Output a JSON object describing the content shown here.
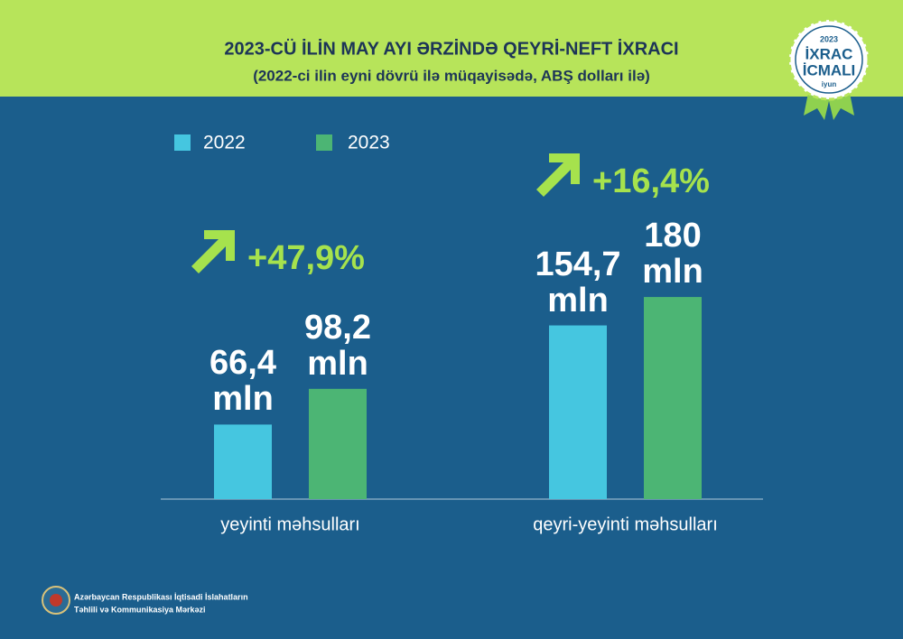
{
  "header": {
    "title": "2023-CÜ İLİN MAY AYI ƏRZİNDƏ QEYRİ-NEFT İXRACI",
    "subtitle": "(2022-ci ilin eyni dövrü ilə müqayisədə, ABŞ dolları ilə)"
  },
  "badge": {
    "year": "2023",
    "line1": "İXRAC",
    "line2": "İCMALI",
    "month": "iyun"
  },
  "chart_data": {
    "type": "bar",
    "categories": [
      "yeyinti məhsulları",
      "qeyri-yeyinti məhsulları"
    ],
    "series": [
      {
        "name": "2022",
        "color": "#45c6e0",
        "values": [
          66.4,
          154.7
        ],
        "value_labels": [
          "66,4 mln",
          "154,7 mln"
        ]
      },
      {
        "name": "2023",
        "color": "#4cb574",
        "values": [
          98.2,
          180
        ],
        "value_labels": [
          "98,2 mln",
          "180 mln"
        ]
      }
    ],
    "annotations": [
      "+47,9%",
      "+16,4%"
    ],
    "annotation_color": "#a6e24d"
  },
  "footer": {
    "lines": [
      "Azərbaycan Respublikası İqtisadi İslahatların",
      "Təhlili və Kommunikasiya Mərkəzi"
    ]
  }
}
